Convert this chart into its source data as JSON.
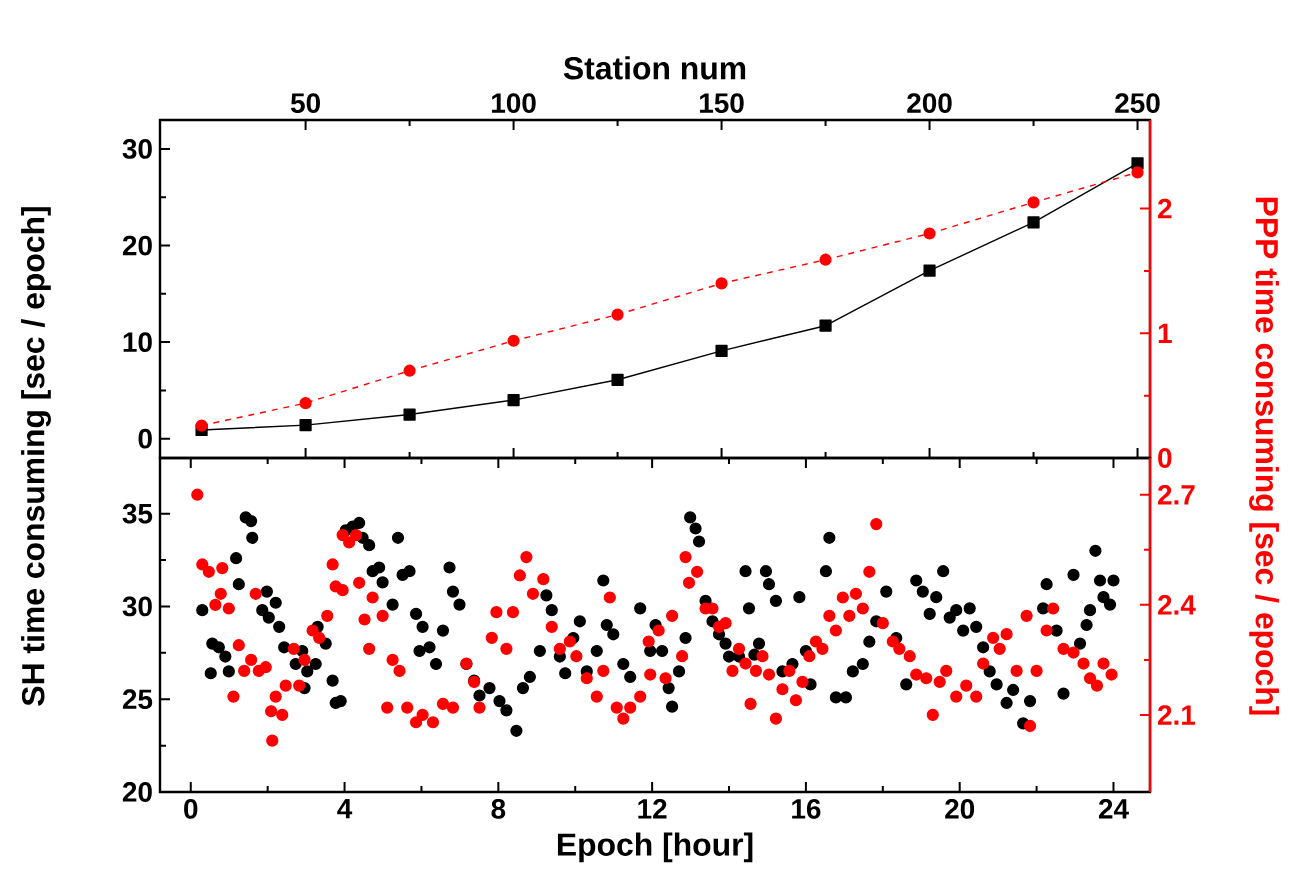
{
  "chart_data": [
    {
      "type": "line",
      "xlabel": "Station num",
      "xlim": [
        15,
        253
      ],
      "xticks": [
        50,
        100,
        150,
        200,
        250
      ],
      "ylim": [
        -2,
        33
      ],
      "yticks": [
        0,
        10,
        20,
        30
      ],
      "y2lim": [
        0,
        2.71
      ],
      "y2ticks": [
        0,
        1,
        2
      ],
      "x": [
        25,
        50,
        75,
        100,
        125,
        150,
        175,
        200,
        225,
        250
      ],
      "series": [
        {
          "color": "#000000",
          "marker": "square",
          "line_style": "solid",
          "values": [
            0.9,
            1.4,
            2.5,
            4.0,
            6.1,
            9.1,
            11.7,
            17.4,
            22.4,
            28.5
          ]
        },
        {
          "color": "#ff0000",
          "marker": "circle",
          "line_style": "dashed",
          "axis": "y2",
          "values": [
            0.26,
            0.44,
            0.7,
            0.94,
            1.15,
            1.4,
            1.59,
            1.8,
            2.05,
            2.29
          ]
        }
      ]
    },
    {
      "type": "scatter",
      "xlabel": "Epoch [hour]",
      "ylabel": "SH time consuming [sec / epoch]",
      "y2label": "PPP time consuming [sec / epoch]",
      "xlim": [
        -0.8,
        24.95
      ],
      "xticks": [
        0,
        4,
        8,
        12,
        16,
        20,
        24
      ],
      "ylim": [
        20,
        38
      ],
      "yticks": [
        20,
        25,
        30,
        35
      ],
      "y2lim": [
        1.89,
        2.8
      ],
      "y2ticks": [
        2.1,
        2.4,
        2.7
      ],
      "series": [
        {
          "color": "#000000",
          "marker": "circle",
          "x": [
            0.3,
            0.56,
            0.73,
            0.52,
            0.99,
            0.9,
            1.18,
            1.43,
            1.57,
            1.6,
            1.25,
            1.86,
            1.98,
            2.03,
            2.21,
            2.3,
            2.43,
            2.73,
            2.9,
            3.03,
            2.96,
            3.25,
            3.3,
            3.51,
            3.69,
            3.77,
            3.9,
            4.03,
            4.21,
            4.38,
            4.47,
            4.64,
            4.73,
            4.9,
            4.99,
            5.39,
            5.25,
            5.51,
            5.69,
            5.86,
            6.03,
            5.95,
            6.21,
            6.38,
            6.56,
            6.73,
            6.82,
            6.99,
            7.17,
            7.37,
            7.51,
            7.77,
            8.03,
            8.21,
            8.47,
            8.64,
            8.82,
            9.08,
            9.25,
            9.39,
            9.6,
            9.74,
            9.95,
            10.12,
            10.3,
            10.56,
            10.73,
            10.82,
            10.99,
            11.25,
            11.43,
            11.69,
            11.95,
            12.09,
            12.26,
            12.43,
            12.52,
            12.7,
            12.87,
            12.99,
            13.13,
            13.22,
            13.39,
            13.57,
            13.74,
            13.91,
            14.0,
            14.26,
            14.43,
            14.52,
            14.66,
            14.78,
            14.96,
            15.04,
            15.22,
            15.39,
            15.65,
            15.83,
            16.0,
            16.12,
            16.52,
            16.61,
            16.78,
            17.04,
            17.22,
            17.48,
            17.65,
            17.83,
            18.09,
            18.35,
            18.61,
            18.87,
            19.04,
            19.22,
            19.39,
            19.57,
            19.74,
            19.91,
            20.09,
            20.26,
            20.43,
            20.61,
            20.78,
            20.96,
            21.22,
            21.39,
            21.65,
            21.83,
            22.17,
            22.26,
            22.52,
            22.7,
            22.96,
            23.13,
            23.3,
            23.39,
            23.53,
            23.65,
            23.74,
            23.91,
            24.0
          ],
          "values": [
            29.8,
            28.0,
            27.8,
            26.4,
            26.5,
            27.3,
            32.6,
            34.8,
            34.6,
            33.7,
            31.2,
            29.8,
            30.8,
            29.4,
            30.2,
            28.9,
            27.8,
            26.9,
            27.6,
            26.5,
            25.6,
            26.9,
            28.9,
            28.0,
            26.0,
            24.8,
            24.9,
            34.1,
            34.3,
            34.5,
            33.7,
            33.3,
            31.9,
            32.1,
            31.3,
            33.7,
            30.1,
            31.7,
            31.9,
            29.6,
            28.9,
            27.6,
            27.8,
            26.9,
            28.7,
            32.1,
            30.8,
            30.1,
            26.9,
            26.0,
            25.2,
            25.6,
            24.9,
            24.4,
            23.3,
            25.6,
            26.2,
            27.6,
            30.6,
            29.8,
            27.3,
            26.4,
            28.3,
            29.2,
            26.5,
            27.6,
            31.4,
            29.0,
            28.5,
            26.9,
            26.2,
            29.9,
            27.6,
            29.0,
            27.6,
            25.6,
            24.6,
            26.5,
            28.3,
            34.8,
            34.2,
            33.5,
            30.3,
            29.2,
            28.5,
            28.0,
            27.3,
            27.3,
            31.9,
            29.9,
            27.4,
            28.0,
            31.9,
            31.2,
            30.3,
            26.5,
            26.9,
            30.5,
            27.6,
            25.8,
            31.9,
            33.7,
            25.1,
            25.1,
            26.5,
            26.9,
            28.1,
            29.2,
            30.8,
            28.3,
            25.8,
            31.4,
            30.8,
            29.6,
            30.5,
            31.9,
            29.4,
            29.8,
            28.7,
            29.9,
            28.9,
            27.8,
            26.5,
            25.8,
            24.8,
            25.5,
            23.7,
            24.9,
            29.9,
            31.2,
            28.7,
            25.3,
            31.7,
            28.0,
            29.0,
            29.8,
            33.0,
            31.4,
            30.5,
            30.1,
            31.4
          ]
        },
        {
          "color": "#ff0000",
          "marker": "circle",
          "axis": "y2",
          "x": [
            0.17,
            0.3,
            0.47,
            0.64,
            0.78,
            0.99,
            0.82,
            1.11,
            1.25,
            1.39,
            1.57,
            1.69,
            1.77,
            1.95,
            2.09,
            2.21,
            2.38,
            2.12,
            2.47,
            2.68,
            2.82,
            2.96,
            3.17,
            3.34,
            3.55,
            3.69,
            3.77,
            3.95,
            3.95,
            4.12,
            4.3,
            4.38,
            4.52,
            4.64,
            4.73,
            4.99,
            5.11,
            5.25,
            5.43,
            5.63,
            5.86,
            6.03,
            6.3,
            6.56,
            6.82,
            7.17,
            7.37,
            7.51,
            7.83,
            7.95,
            8.21,
            8.38,
            8.56,
            8.73,
            8.9,
            9.17,
            9.39,
            9.6,
            9.86,
            10.03,
            10.3,
            10.56,
            10.73,
            10.9,
            11.08,
            11.25,
            11.43,
            11.69,
            11.95,
            11.91,
            12.17,
            12.35,
            12.52,
            12.78,
            12.87,
            12.96,
            13.17,
            13.39,
            13.57,
            13.74,
            13.91,
            14.09,
            14.26,
            14.43,
            14.56,
            14.7,
            14.87,
            15.04,
            15.22,
            15.39,
            15.57,
            15.74,
            15.91,
            16.09,
            16.26,
            16.43,
            16.61,
            16.78,
            16.96,
            17.13,
            17.3,
            17.48,
            17.65,
            17.83,
            18.0,
            18.26,
            18.43,
            18.7,
            18.87,
            19.13,
            19.3,
            19.48,
            19.65,
            19.91,
            20.17,
            20.43,
            20.61,
            20.87,
            21.04,
            21.22,
            21.48,
            21.74,
            22.0,
            22.26,
            22.43,
            22.7,
            22.96,
            23.22,
            23.39,
            23.57,
            23.74,
            23.95,
            21.83
          ],
          "values": [
            2.7,
            2.51,
            2.49,
            2.4,
            2.43,
            2.39,
            2.5,
            2.15,
            2.29,
            2.22,
            2.25,
            2.43,
            2.22,
            2.23,
            2.11,
            2.15,
            2.1,
            2.03,
            2.18,
            2.28,
            2.18,
            2.25,
            2.33,
            2.31,
            2.37,
            2.51,
            2.45,
            2.44,
            2.59,
            2.57,
            2.59,
            2.46,
            2.36,
            2.28,
            2.42,
            2.37,
            2.12,
            2.25,
            2.22,
            2.12,
            2.08,
            2.1,
            2.08,
            2.13,
            2.12,
            2.24,
            2.19,
            2.12,
            2.31,
            2.38,
            2.28,
            2.38,
            2.48,
            2.53,
            2.43,
            2.47,
            2.34,
            2.28,
            2.3,
            2.26,
            2.2,
            2.15,
            2.22,
            2.42,
            2.12,
            2.09,
            2.12,
            2.15,
            2.21,
            2.3,
            2.33,
            2.2,
            2.37,
            2.26,
            2.53,
            2.46,
            2.49,
            2.39,
            2.39,
            2.34,
            2.35,
            2.22,
            2.28,
            2.24,
            2.13,
            2.22,
            2.26,
            2.21,
            2.09,
            2.17,
            2.22,
            2.14,
            2.19,
            2.26,
            2.3,
            2.28,
            2.37,
            2.33,
            2.42,
            2.37,
            2.43,
            2.39,
            2.49,
            2.62,
            2.35,
            2.3,
            2.28,
            2.26,
            2.21,
            2.2,
            2.1,
            2.19,
            2.22,
            2.15,
            2.18,
            2.15,
            2.24,
            2.31,
            2.28,
            2.32,
            2.22,
            2.37,
            2.22,
            2.33,
            2.39,
            2.28,
            2.27,
            2.24,
            2.2,
            2.18,
            2.24,
            2.21,
            2.07
          ]
        }
      ]
    }
  ]
}
